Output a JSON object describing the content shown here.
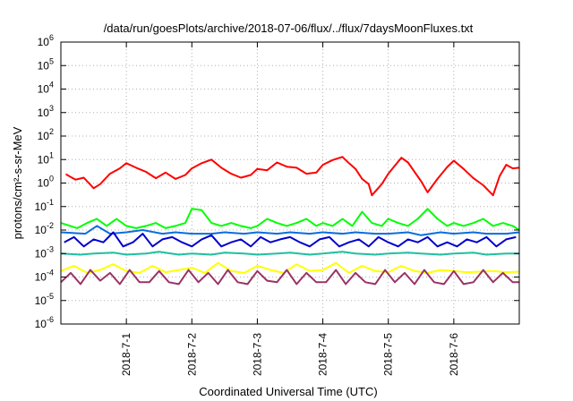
{
  "chart_data": {
    "type": "line",
    "title": "/data/run/goesPlots/archive/2018-07-06/flux/../flux/7daysMoonFluxes.txt",
    "xlabel": "Coordinated Universal Time (UTC)",
    "ylabel": "protons/cm²-s-sr-MeV",
    "y_scale": "log",
    "ylim": [
      1e-06,
      1000000.0
    ],
    "y_ticks": [
      {
        "value": 1e-06,
        "base": "10",
        "exp": "-6"
      },
      {
        "value": 1e-05,
        "base": "10",
        "exp": "-5"
      },
      {
        "value": 0.0001,
        "base": "10",
        "exp": "-4"
      },
      {
        "value": 0.001,
        "base": "10",
        "exp": "-3"
      },
      {
        "value": 0.01,
        "base": "10",
        "exp": "-2"
      },
      {
        "value": 0.1,
        "base": "10",
        "exp": "-1"
      },
      {
        "value": 1,
        "base": "10",
        "exp": "0"
      },
      {
        "value": 10,
        "base": "10",
        "exp": "1"
      },
      {
        "value": 100,
        "base": "10",
        "exp": "2"
      },
      {
        "value": 1000,
        "base": "10",
        "exp": "3"
      },
      {
        "value": 10000,
        "base": "10",
        "exp": "4"
      },
      {
        "value": 100000,
        "base": "10",
        "exp": "5"
      },
      {
        "value": 1000000,
        "base": "10",
        "exp": "6"
      }
    ],
    "xlim": [
      "2018-06-30T00:00Z",
      "2018-07-07T00:00Z"
    ],
    "x_ticks": [
      "2018-7-1",
      "2018-7-2",
      "2018-7-3",
      "2018-7-4",
      "2018-7-5",
      "2018-7-6"
    ],
    "x_tick_dates": [
      "2018-07-01T00:00Z",
      "2018-07-02T00:00Z",
      "2018-07-03T00:00Z",
      "2018-07-04T00:00Z",
      "2018-07-05T00:00Z",
      "2018-07-06T00:00Z"
    ],
    "grid": true,
    "series": [
      {
        "color": "#ff0000",
        "x": [
          "2018-06-30T01:48Z",
          "2018-06-30T03:36Z",
          "2018-06-30T05:24Z",
          "2018-06-30T08:24Z",
          "2018-06-30T12:00Z",
          "2018-06-30T14:24Z",
          "2018-06-30T18:00Z",
          "2018-06-30T21:36Z",
          "2018-07-01T00:00Z",
          "2018-07-01T03:36Z",
          "2018-07-01T07:12Z",
          "2018-07-01T10:48Z",
          "2018-07-01T14:24Z",
          "2018-07-01T18:00Z",
          "2018-07-01T21:36Z",
          "2018-07-02T00:00Z",
          "2018-07-02T03:36Z",
          "2018-07-02T07:12Z",
          "2018-07-02T10:48Z",
          "2018-07-02T14:24Z",
          "2018-07-02T18:00Z",
          "2018-07-02T21:36Z",
          "2018-07-03T00:00Z",
          "2018-07-03T03:36Z",
          "2018-07-03T07:12Z",
          "2018-07-03T10:48Z",
          "2018-07-03T14:24Z",
          "2018-07-03T18:00Z",
          "2018-07-03T21:36Z",
          "2018-07-04T00:00Z",
          "2018-07-04T03:36Z",
          "2018-07-04T07:12Z",
          "2018-07-04T09:36Z",
          "2018-07-04T12:00Z",
          "2018-07-04T14:24Z",
          "2018-07-04T16:48Z",
          "2018-07-04T18:00Z",
          "2018-07-04T21:36Z",
          "2018-07-05T00:00Z",
          "2018-07-05T02:24Z",
          "2018-07-05T04:48Z",
          "2018-07-05T07:12Z",
          "2018-07-05T09:36Z",
          "2018-07-05T12:00Z",
          "2018-07-05T14:24Z",
          "2018-07-05T18:00Z",
          "2018-07-05T21:36Z",
          "2018-07-06T00:00Z",
          "2018-07-06T03:36Z",
          "2018-07-06T07:12Z",
          "2018-07-06T10:48Z",
          "2018-07-06T14:24Z",
          "2018-07-06T16:48Z",
          "2018-07-06T19:12Z",
          "2018-07-06T21:36Z",
          "2018-07-06T23:59Z"
        ],
        "values": [
          2.4,
          1.8,
          1.4,
          1.7,
          0.6,
          0.9,
          2.5,
          4.2,
          7,
          4.5,
          3,
          1.6,
          2.8,
          1.5,
          2.2,
          4.2,
          7,
          10,
          4.5,
          2.5,
          1.7,
          2.2,
          4,
          3.5,
          7.5,
          5,
          4.5,
          2.5,
          2.8,
          6,
          9.5,
          13,
          7,
          4,
          1.5,
          0.9,
          0.3,
          0.9,
          2.5,
          5.5,
          12,
          7.5,
          3,
          1.2,
          0.4,
          1.5,
          4.8,
          9,
          4,
          1.6,
          0.8,
          0.3,
          2,
          6,
          4.2,
          4.5
        ]
      },
      {
        "color": "#00ff00",
        "x": [
          "2018-06-30T00:00Z",
          "2018-06-30T06:00Z",
          "2018-06-30T09:36Z",
          "2018-06-30T13:12Z",
          "2018-06-30T16:48Z",
          "2018-06-30T20:24Z",
          "2018-07-01T00:00Z",
          "2018-07-01T03:36Z",
          "2018-07-01T07:12Z",
          "2018-07-01T10:48Z",
          "2018-07-01T14:24Z",
          "2018-07-01T18:00Z",
          "2018-07-01T21:36Z",
          "2018-07-02T00:00Z",
          "2018-07-02T03:36Z",
          "2018-07-02T07:12Z",
          "2018-07-02T10:48Z",
          "2018-07-02T14:24Z",
          "2018-07-02T18:00Z",
          "2018-07-02T21:36Z",
          "2018-07-03T00:00Z",
          "2018-07-03T03:36Z",
          "2018-07-03T07:12Z",
          "2018-07-03T10:48Z",
          "2018-07-03T14:24Z",
          "2018-07-03T18:00Z",
          "2018-07-03T21:36Z",
          "2018-07-04T00:00Z",
          "2018-07-04T03:36Z",
          "2018-07-04T07:12Z",
          "2018-07-04T10:48Z",
          "2018-07-04T14:24Z",
          "2018-07-04T18:00Z",
          "2018-07-04T21:36Z",
          "2018-07-05T00:00Z",
          "2018-07-05T03:36Z",
          "2018-07-05T07:12Z",
          "2018-07-05T10:48Z",
          "2018-07-05T14:24Z",
          "2018-07-05T18:00Z",
          "2018-07-05T21:36Z",
          "2018-07-06T00:00Z",
          "2018-07-06T03:36Z",
          "2018-07-06T07:12Z",
          "2018-07-06T10:48Z",
          "2018-07-06T14:24Z",
          "2018-07-06T18:00Z",
          "2018-07-06T21:36Z",
          "2018-07-06T23:59Z"
        ],
        "values": [
          0.02,
          0.012,
          0.02,
          0.03,
          0.015,
          0.03,
          0.015,
          0.012,
          0.015,
          0.02,
          0.012,
          0.015,
          0.02,
          0.08,
          0.07,
          0.02,
          0.015,
          0.02,
          0.015,
          0.012,
          0.015,
          0.03,
          0.02,
          0.015,
          0.02,
          0.03,
          0.015,
          0.02,
          0.015,
          0.03,
          0.015,
          0.06,
          0.02,
          0.015,
          0.03,
          0.02,
          0.015,
          0.03,
          0.08,
          0.03,
          0.015,
          0.02,
          0.015,
          0.02,
          0.03,
          0.015,
          0.02,
          0.015,
          0.01
        ]
      },
      {
        "color": "#0a6de0",
        "x": [
          "2018-06-30T00:00Z",
          "2018-06-30T09:00Z",
          "2018-06-30T13:12Z",
          "2018-06-30T18:00Z",
          "2018-07-01T00:00Z",
          "2018-07-01T06:00Z",
          "2018-07-01T13:12Z",
          "2018-07-01T18:00Z",
          "2018-07-02T00:00Z",
          "2018-07-02T07:12Z",
          "2018-07-02T12:00Z",
          "2018-07-02T19:12Z",
          "2018-07-03T00:00Z",
          "2018-07-03T07:12Z",
          "2018-07-03T12:00Z",
          "2018-07-03T19:12Z",
          "2018-07-04T00:00Z",
          "2018-07-04T07:12Z",
          "2018-07-04T12:00Z",
          "2018-07-04T19:12Z",
          "2018-07-05T00:00Z",
          "2018-07-05T07:12Z",
          "2018-07-05T12:00Z",
          "2018-07-05T19:12Z",
          "2018-07-06T00:00Z",
          "2018-07-06T07:12Z",
          "2018-07-06T12:00Z",
          "2018-07-06T19:12Z",
          "2018-07-06T23:59Z"
        ],
        "values": [
          0.008,
          0.007,
          0.015,
          0.007,
          0.008,
          0.01,
          0.007,
          0.008,
          0.007,
          0.007,
          0.008,
          0.007,
          0.008,
          0.007,
          0.008,
          0.007,
          0.008,
          0.007,
          0.008,
          0.007,
          0.007,
          0.008,
          0.006,
          0.008,
          0.007,
          0.008,
          0.007,
          0.007,
          0.008
        ]
      },
      {
        "color": "#0000cc",
        "x": [
          "2018-06-30T01:12Z",
          "2018-06-30T04:48Z",
          "2018-06-30T08:24Z",
          "2018-06-30T12:00Z",
          "2018-06-30T15:36Z",
          "2018-06-30T19:12Z",
          "2018-06-30T22:48Z",
          "2018-07-01T02:24Z",
          "2018-07-01T06:00Z",
          "2018-07-01T09:36Z",
          "2018-07-01T13:12Z",
          "2018-07-01T16:48Z",
          "2018-07-01T20:24Z",
          "2018-07-02T00:00Z",
          "2018-07-02T03:36Z",
          "2018-07-02T07:12Z",
          "2018-07-02T10:48Z",
          "2018-07-02T14:24Z",
          "2018-07-02T18:00Z",
          "2018-07-02T21:36Z",
          "2018-07-03T01:12Z",
          "2018-07-03T04:48Z",
          "2018-07-03T08:24Z",
          "2018-07-03T12:00Z",
          "2018-07-03T15:36Z",
          "2018-07-03T19:12Z",
          "2018-07-03T22:48Z",
          "2018-07-04T02:24Z",
          "2018-07-04T06:00Z",
          "2018-07-04T09:36Z",
          "2018-07-04T13:12Z",
          "2018-07-04T16:48Z",
          "2018-07-04T20:24Z",
          "2018-07-05T00:00Z",
          "2018-07-05T03:36Z",
          "2018-07-05T07:12Z",
          "2018-07-05T10:48Z",
          "2018-07-05T14:24Z",
          "2018-07-05T18:00Z",
          "2018-07-05T21:36Z",
          "2018-07-06T01:12Z",
          "2018-07-06T04:48Z",
          "2018-07-06T08:24Z",
          "2018-07-06T12:00Z",
          "2018-07-06T15:36Z",
          "2018-07-06T19:12Z",
          "2018-07-06T22:48Z"
        ],
        "values": [
          0.003,
          0.005,
          0.002,
          0.004,
          0.003,
          0.008,
          0.002,
          0.003,
          0.007,
          0.002,
          0.004,
          0.005,
          0.003,
          0.002,
          0.004,
          0.006,
          0.002,
          0.003,
          0.004,
          0.002,
          0.005,
          0.003,
          0.004,
          0.005,
          0.003,
          0.002,
          0.004,
          0.005,
          0.002,
          0.003,
          0.004,
          0.002,
          0.005,
          0.003,
          0.002,
          0.004,
          0.003,
          0.005,
          0.002,
          0.003,
          0.002,
          0.004,
          0.003,
          0.005,
          0.002,
          0.004,
          0.005
        ]
      },
      {
        "color": "#20c0a0",
        "x": [
          "2018-06-30T00:00Z",
          "2018-06-30T07:12Z",
          "2018-06-30T12:00Z",
          "2018-06-30T19:12Z",
          "2018-07-01T00:00Z",
          "2018-07-01T07:12Z",
          "2018-07-01T12:00Z",
          "2018-07-01T19:12Z",
          "2018-07-02T00:00Z",
          "2018-07-02T07:12Z",
          "2018-07-02T12:00Z",
          "2018-07-02T19:12Z",
          "2018-07-03T00:00Z",
          "2018-07-03T07:12Z",
          "2018-07-03T12:00Z",
          "2018-07-03T19:12Z",
          "2018-07-04T00:00Z",
          "2018-07-04T07:12Z",
          "2018-07-04T12:00Z",
          "2018-07-04T19:12Z",
          "2018-07-05T00:00Z",
          "2018-07-05T07:12Z",
          "2018-07-05T12:00Z",
          "2018-07-05T19:12Z",
          "2018-07-06T00:00Z",
          "2018-07-06T07:12Z",
          "2018-07-06T12:00Z",
          "2018-07-06T19:12Z",
          "2018-07-06T23:59Z"
        ],
        "values": [
          0.001,
          0.0009,
          0.001,
          0.0011,
          0.0009,
          0.001,
          0.0012,
          0.0009,
          0.001,
          0.0009,
          0.0011,
          0.001,
          0.0009,
          0.001,
          0.0011,
          0.0009,
          0.001,
          0.0012,
          0.001,
          0.0009,
          0.001,
          0.0011,
          0.001,
          0.0009,
          0.001,
          0.0011,
          0.0009,
          0.001,
          0.001
        ]
      },
      {
        "color": "#ffff00",
        "x": [
          "2018-06-30T00:00Z",
          "2018-06-30T04:48Z",
          "2018-06-30T09:36Z",
          "2018-06-30T14:24Z",
          "2018-06-30T19:12Z",
          "2018-07-01T00:00Z",
          "2018-07-01T04:48Z",
          "2018-07-01T09:36Z",
          "2018-07-01T14:24Z",
          "2018-07-01T19:12Z",
          "2018-07-02T00:00Z",
          "2018-07-02T04:48Z",
          "2018-07-02T09:36Z",
          "2018-07-02T14:24Z",
          "2018-07-02T19:12Z",
          "2018-07-03T00:00Z",
          "2018-07-03T04:48Z",
          "2018-07-03T09:36Z",
          "2018-07-03T14:24Z",
          "2018-07-03T19:12Z",
          "2018-07-04T00:00Z",
          "2018-07-04T04:48Z",
          "2018-07-04T09:36Z",
          "2018-07-04T14:24Z",
          "2018-07-04T19:12Z",
          "2018-07-05T00:00Z",
          "2018-07-05T04:48Z",
          "2018-07-05T09:36Z",
          "2018-07-05T14:24Z",
          "2018-07-05T19:12Z",
          "2018-07-06T00:00Z",
          "2018-07-06T04:48Z",
          "2018-07-06T09:36Z",
          "2018-07-06T14:24Z",
          "2018-07-06T19:12Z",
          "2018-07-06T23:59Z"
        ],
        "values": [
          0.00018,
          0.0003,
          0.00015,
          0.0002,
          0.00035,
          0.00018,
          0.00015,
          0.0003,
          0.00016,
          0.0002,
          0.00025,
          0.00015,
          0.0004,
          0.00018,
          0.00015,
          0.0003,
          0.0002,
          0.00015,
          0.00035,
          0.00018,
          0.0002,
          0.0004,
          0.00015,
          0.0003,
          0.00018,
          0.00016,
          0.0003,
          0.00018,
          0.00015,
          0.0002,
          0.00018,
          0.00016,
          0.00017,
          0.00018,
          0.00016,
          0.00017
        ]
      },
      {
        "color": "#993366",
        "x": [
          "2018-06-30T00:00Z",
          "2018-06-30T03:36Z",
          "2018-06-30T07:12Z",
          "2018-06-30T10:48Z",
          "2018-06-30T14:24Z",
          "2018-06-30T18:00Z",
          "2018-06-30T21:36Z",
          "2018-07-01T01:12Z",
          "2018-07-01T04:48Z",
          "2018-07-01T08:24Z",
          "2018-07-01T12:00Z",
          "2018-07-01T15:36Z",
          "2018-07-01T19:12Z",
          "2018-07-01T22:48Z",
          "2018-07-02T02:24Z",
          "2018-07-02T06:00Z",
          "2018-07-02T09:36Z",
          "2018-07-02T13:12Z",
          "2018-07-02T16:48Z",
          "2018-07-02T20:24Z",
          "2018-07-03T00:00Z",
          "2018-07-03T03:36Z",
          "2018-07-03T07:12Z",
          "2018-07-03T10:48Z",
          "2018-07-03T14:24Z",
          "2018-07-03T18:00Z",
          "2018-07-03T21:36Z",
          "2018-07-04T01:12Z",
          "2018-07-04T04:48Z",
          "2018-07-04T08:24Z",
          "2018-07-04T12:00Z",
          "2018-07-04T15:36Z",
          "2018-07-04T19:12Z",
          "2018-07-04T22:48Z",
          "2018-07-05T02:24Z",
          "2018-07-05T06:00Z",
          "2018-07-05T09:36Z",
          "2018-07-05T13:12Z",
          "2018-07-05T16:48Z",
          "2018-07-05T20:24Z",
          "2018-07-06T00:00Z",
          "2018-07-06T03:36Z",
          "2018-07-06T07:12Z",
          "2018-07-06T10:48Z",
          "2018-07-06T14:24Z",
          "2018-07-06T18:00Z",
          "2018-07-06T21:36Z",
          "2018-07-06T23:59Z"
        ],
        "values": [
          6e-05,
          0.00015,
          5e-05,
          0.0002,
          7e-05,
          0.00015,
          5e-05,
          0.0002,
          6e-05,
          6e-05,
          0.00018,
          6e-05,
          5e-05,
          0.0002,
          6e-05,
          0.00015,
          5e-05,
          0.0002,
          6e-05,
          5e-05,
          0.00018,
          7e-05,
          6e-05,
          0.0002,
          5e-05,
          0.00015,
          6e-05,
          6e-05,
          0.0002,
          5e-05,
          0.00015,
          6e-05,
          5e-05,
          0.0002,
          6e-05,
          0.00015,
          5e-05,
          0.0002,
          6e-05,
          5e-05,
          0.00018,
          5e-05,
          6e-05,
          0.0002,
          6e-05,
          0.00015,
          6e-05,
          6e-05
        ]
      }
    ]
  }
}
